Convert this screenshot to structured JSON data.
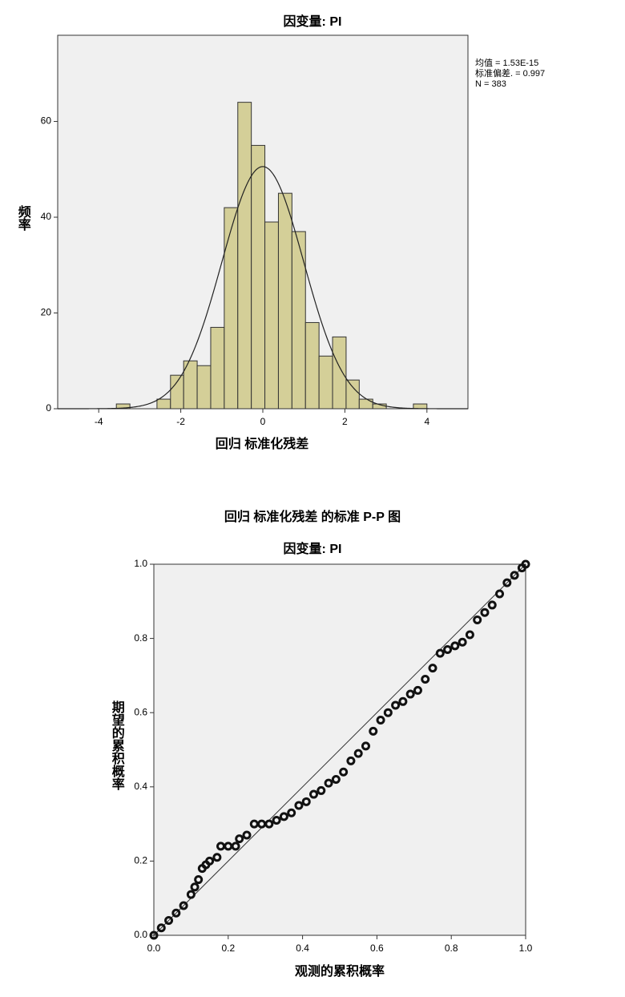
{
  "chart_data": [
    {
      "type": "histogram",
      "title": "因变量: PI",
      "x_label": "回归 标准化残差",
      "y_label": "频率",
      "bins": [
        -3.57,
        -3.24,
        -2.91,
        -2.58,
        -2.25,
        -1.93,
        -1.6,
        -1.27,
        -0.94,
        -0.61,
        -0.28,
        0.05,
        0.38,
        0.71,
        1.04,
        1.37,
        1.7,
        2.03,
        2.35,
        2.68,
        3.01,
        3.34,
        3.67,
        4.0
      ],
      "values": [
        1,
        0,
        0,
        2,
        7,
        10,
        9,
        17,
        42,
        64,
        55,
        39,
        45,
        37,
        18,
        11,
        15,
        6,
        2,
        1,
        0,
        0,
        1
      ],
      "color": "#d4cf98",
      "edge_color": "#333333",
      "background": "#f0f0f0",
      "stats": [
        {
          "text": "均值 = 1.53E-15",
          "value": 1.53e-15
        },
        {
          "text": "标准偏差. = 0.997",
          "value": 0.997
        },
        {
          "text": "N = 383",
          "value": 383
        }
      ],
      "xlim": [
        -5,
        5
      ],
      "ylim": [
        0,
        78
      ],
      "xticks": [
        -4,
        -2,
        0,
        2,
        4
      ],
      "yticks": [
        0,
        20,
        40,
        60
      ]
    },
    {
      "type": "scatter",
      "title": "回归 标准化残差 的标准 P-P 图",
      "subtitle": "因变量: PI",
      "x_label": "观测的累积概率",
      "y_label": "期望的累积概率",
      "x": [
        0,
        0.02,
        0.04,
        0.06,
        0.08,
        0.1,
        0.11,
        0.12,
        0.13,
        0.14,
        0.15,
        0.17,
        0.18,
        0.2,
        0.22,
        0.23,
        0.25,
        0.27,
        0.29,
        0.31,
        0.33,
        0.35,
        0.37,
        0.39,
        0.41,
        0.43,
        0.45,
        0.47,
        0.49,
        0.51,
        0.53,
        0.55,
        0.57,
        0.59,
        0.61,
        0.63,
        0.65,
        0.67,
        0.69,
        0.71,
        0.73,
        0.75,
        0.77,
        0.79,
        0.81,
        0.83,
        0.85,
        0.87,
        0.89,
        0.91,
        0.93,
        0.95,
        0.97,
        0.99,
        1
      ],
      "values": [
        0,
        0.02,
        0.04,
        0.06,
        0.08,
        0.11,
        0.13,
        0.15,
        0.18,
        0.19,
        0.2,
        0.21,
        0.24,
        0.24,
        0.24,
        0.26,
        0.27,
        0.3,
        0.3,
        0.3,
        0.31,
        0.32,
        0.33,
        0.35,
        0.36,
        0.38,
        0.39,
        0.41,
        0.42,
        0.44,
        0.47,
        0.49,
        0.51,
        0.55,
        0.58,
        0.6,
        0.62,
        0.63,
        0.65,
        0.66,
        0.69,
        0.72,
        0.76,
        0.77,
        0.78,
        0.79,
        0.81,
        0.85,
        0.87,
        0.89,
        0.92,
        0.95,
        0.97,
        0.99,
        1
      ],
      "color": "#111111",
      "background": "#f0f0f0",
      "diagonal": true,
      "xlim": [
        0,
        1
      ],
      "ylim": [
        0,
        1
      ],
      "xticks": [
        {
          "value": 0,
          "label": "0.0"
        },
        0.2,
        0.4,
        0.6,
        0.8,
        {
          "value": 1,
          "label": "1.0"
        }
      ],
      "yticks": [
        {
          "value": 0,
          "label": "0.0"
        },
        0.2,
        0.4,
        0.6,
        0.8,
        {
          "value": 1,
          "label": "1.0"
        }
      ]
    }
  ]
}
